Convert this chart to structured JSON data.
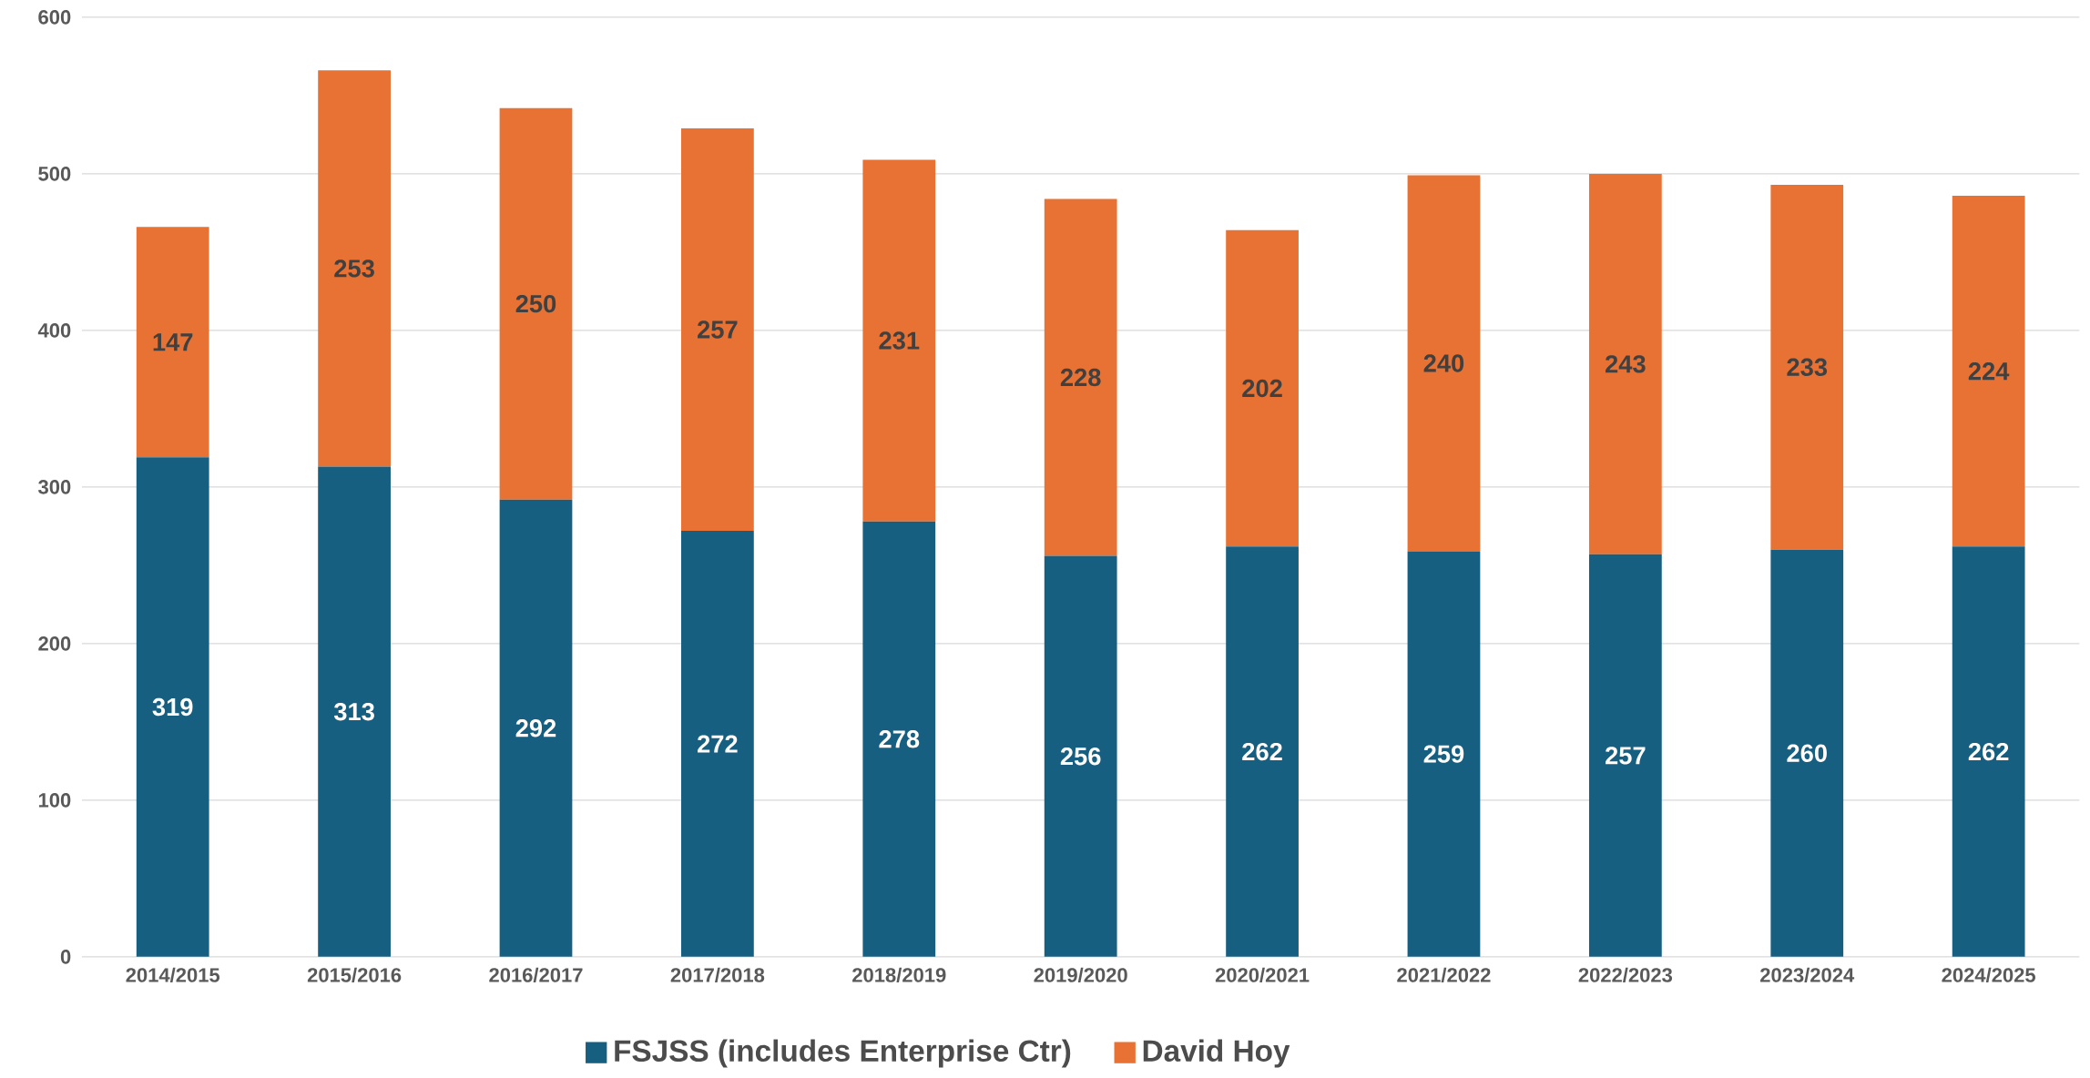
{
  "chart_data": {
    "type": "bar",
    "stacked": true,
    "categories": [
      "2014/2015",
      "2015/2016",
      "2016/2017",
      "2017/2018",
      "2018/2019",
      "2019/2020",
      "2020/2021",
      "2021/2022",
      "2022/2023",
      "2023/2024",
      "2024/2025"
    ],
    "series": [
      {
        "name": "FSJSS (includes Enterprise Ctr)",
        "color": "#175f80",
        "values": [
          319,
          313,
          292,
          272,
          278,
          256,
          262,
          259,
          257,
          260,
          262
        ]
      },
      {
        "name": "David Hoy",
        "color": "#e87233",
        "values": [
          147,
          253,
          250,
          257,
          231,
          228,
          202,
          240,
          243,
          233,
          224
        ]
      }
    ],
    "ylim": [
      0,
      600
    ],
    "yticks": [
      0,
      100,
      200,
      300,
      400,
      500,
      600
    ],
    "grid": "y",
    "legend": "bottom",
    "data_labels": true
  }
}
